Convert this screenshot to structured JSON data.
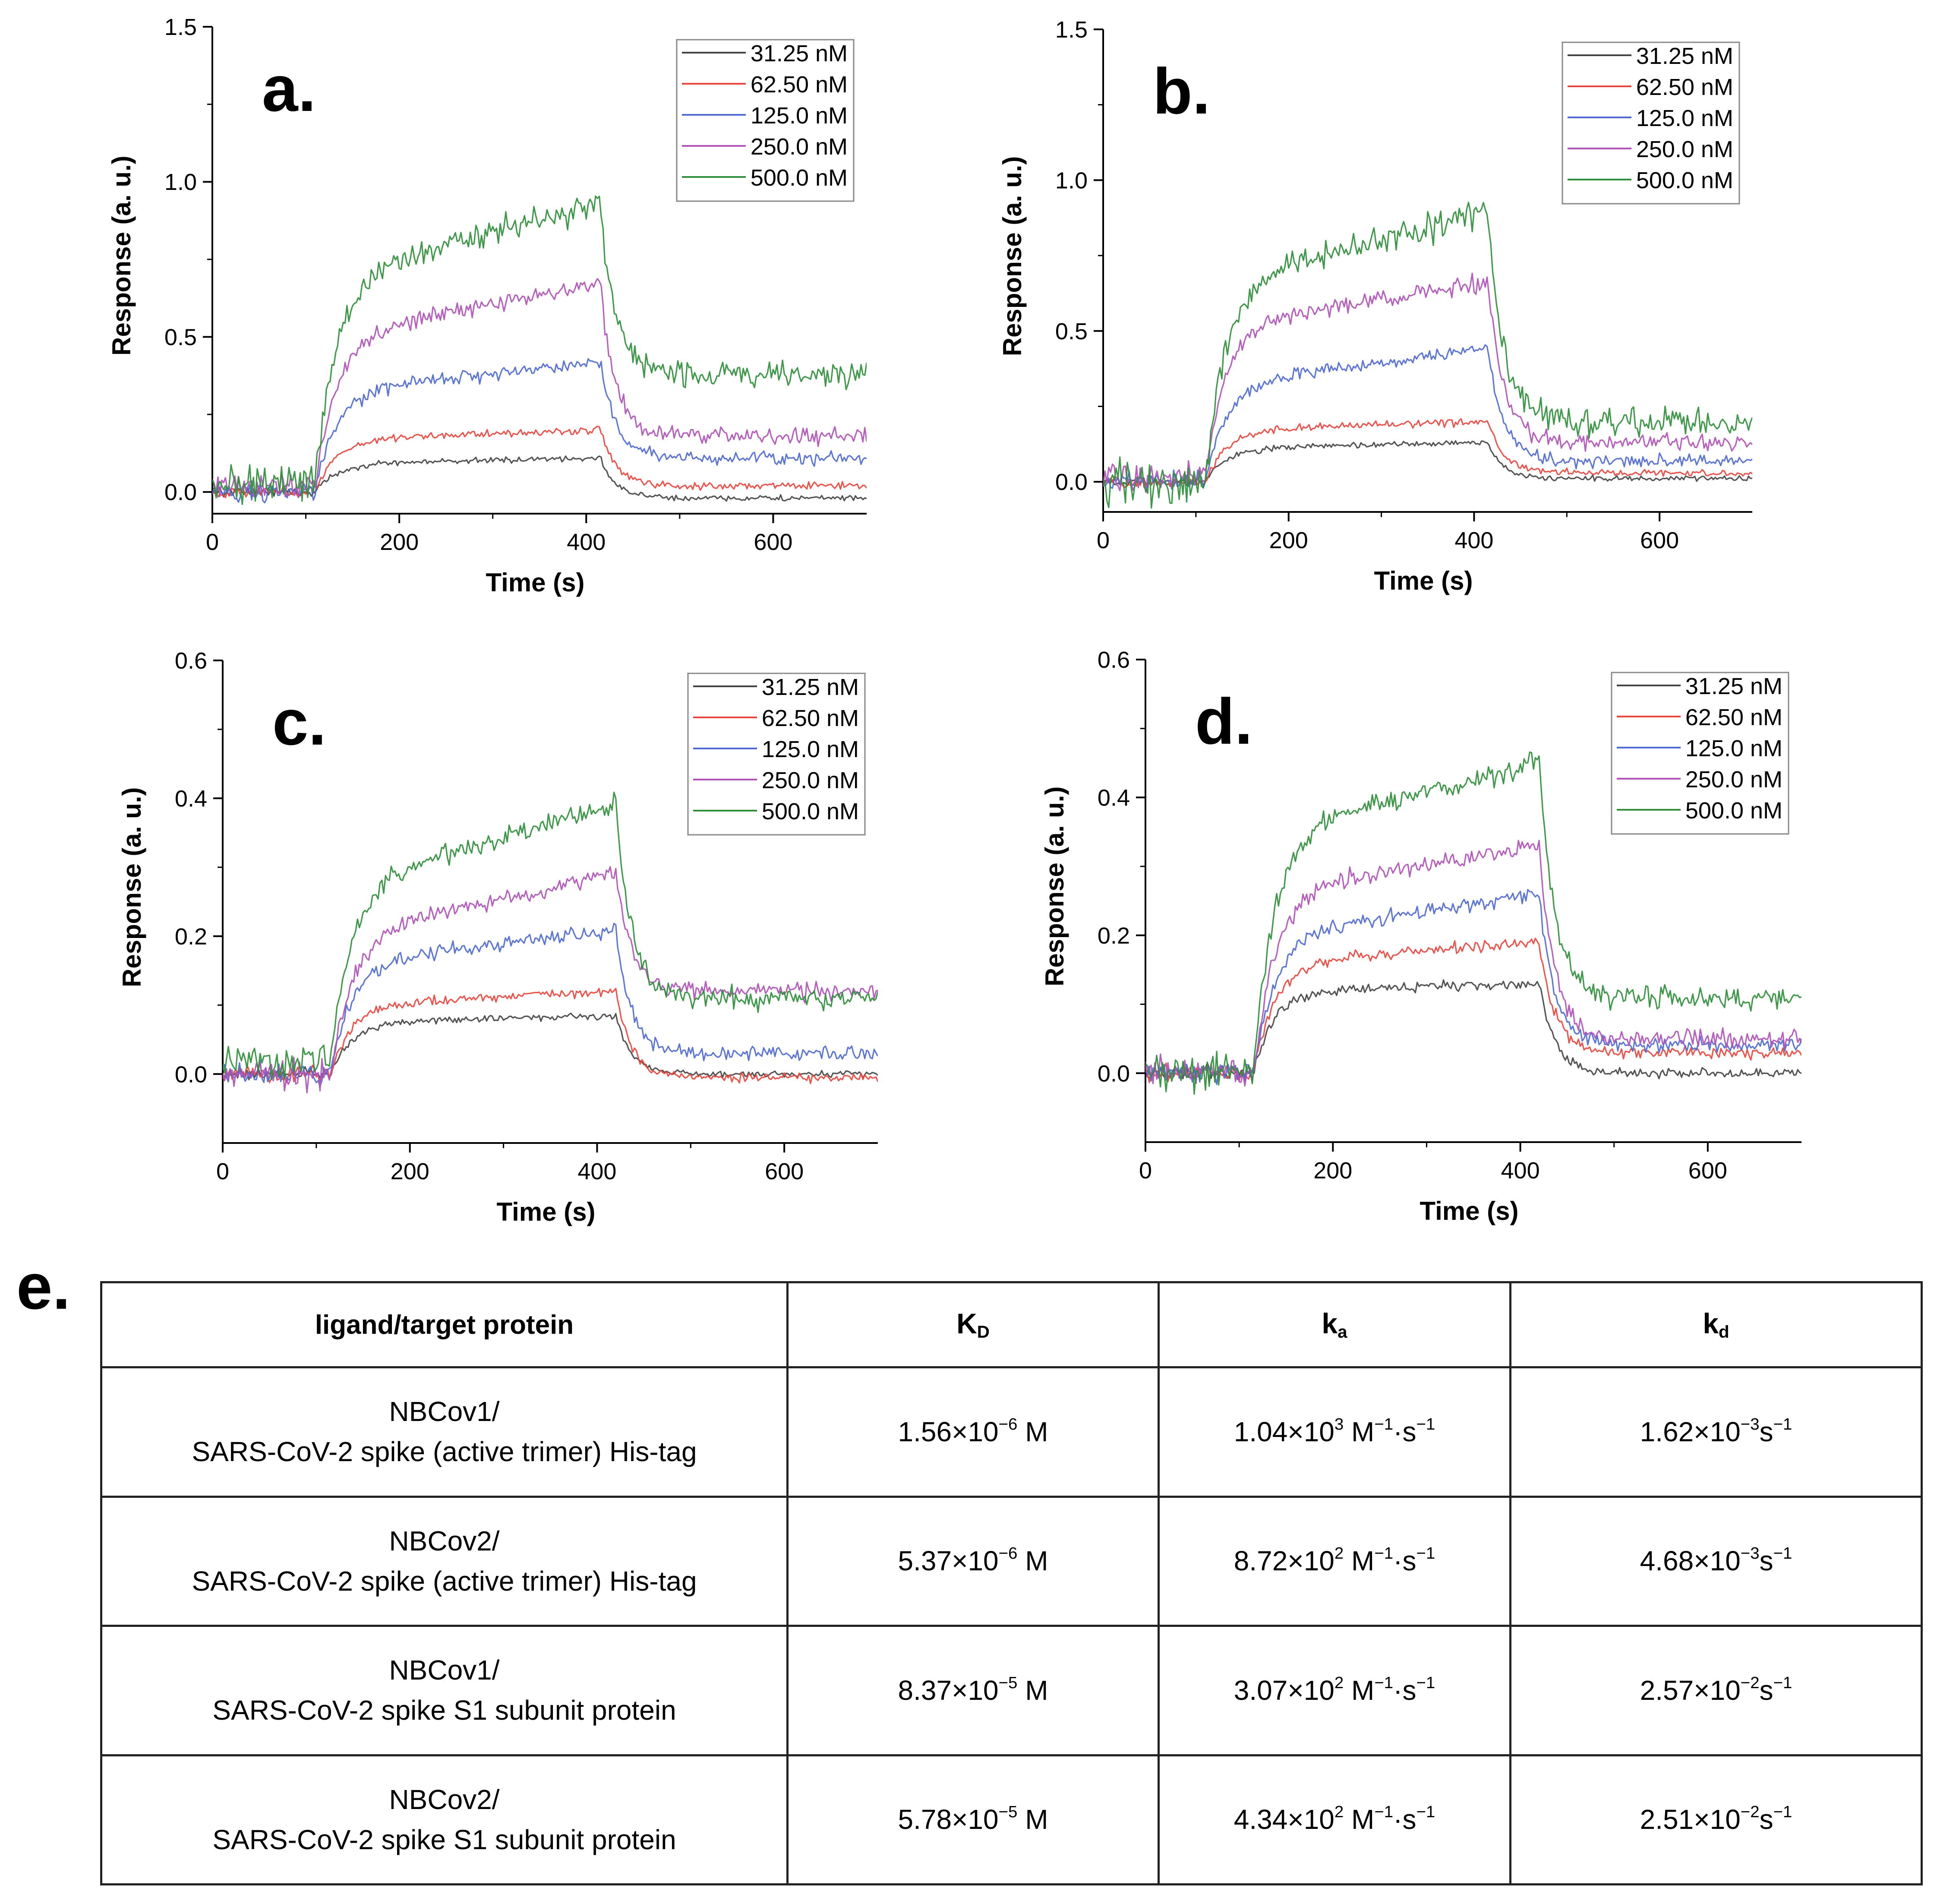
{
  "chart_data": [
    {
      "panel": "a.",
      "type": "line",
      "xlabel": "Time (s)",
      "ylabel": "Response (a. u.)",
      "xlim": [
        0,
        700
      ],
      "ylim": [
        -0.07,
        1.5
      ],
      "xticks": [
        0,
        200,
        400,
        600
      ],
      "yticks": [
        "0.0",
        "0.5",
        "1.0",
        "1.5"
      ],
      "legend_position": "top-right",
      "association_start": 110,
      "dissociation_start": 415,
      "series": [
        {
          "name": "31.25 nM",
          "color": "#444444",
          "baseline": 0.0,
          "plateau_start": 0.09,
          "plateau_end": 0.11,
          "final": -0.02,
          "noise": 0.008
        },
        {
          "name": "62.50 nM",
          "color": "#e8473f",
          "baseline": 0.0,
          "plateau_start": 0.17,
          "plateau_end": 0.2,
          "final": 0.02,
          "noise": 0.01
        },
        {
          "name": "125.0 nM",
          "color": "#4f6ad0",
          "baseline": 0.0,
          "plateau_start": 0.32,
          "plateau_end": 0.42,
          "final": 0.11,
          "noise": 0.018
        },
        {
          "name": "250.0 nM",
          "color": "#b052b8",
          "baseline": 0.02,
          "plateau_start": 0.5,
          "plateau_end": 0.67,
          "final": 0.18,
          "noise": 0.025
        },
        {
          "name": "500.0 nM",
          "color": "#2f8f3a",
          "baseline": 0.03,
          "plateau_start": 0.68,
          "plateau_end": 0.93,
          "final": 0.38,
          "noise": 0.035
        }
      ]
    },
    {
      "panel": "b.",
      "type": "line",
      "xlabel": "Time (s)",
      "ylabel": "Response (a. u.)",
      "xlim": [
        0,
        700
      ],
      "ylim": [
        -0.1,
        1.5
      ],
      "xticks": [
        0,
        200,
        400,
        600
      ],
      "yticks": [
        "0.0",
        "0.5",
        "1.0",
        "1.5"
      ],
      "legend_position": "top-right",
      "association_start": 110,
      "dissociation_start": 415,
      "series": [
        {
          "name": "31.25 nM",
          "color": "#444444",
          "baseline": 0.0,
          "plateau_start": 0.11,
          "plateau_end": 0.13,
          "final": 0.01,
          "noise": 0.008
        },
        {
          "name": "62.50 nM",
          "color": "#e8473f",
          "baseline": 0.0,
          "plateau_start": 0.17,
          "plateau_end": 0.2,
          "final": 0.03,
          "noise": 0.01
        },
        {
          "name": "125.0 nM",
          "color": "#4f6ad0",
          "baseline": 0.0,
          "plateau_start": 0.32,
          "plateau_end": 0.44,
          "final": 0.07,
          "noise": 0.018
        },
        {
          "name": "250.0 nM",
          "color": "#b052b8",
          "baseline": 0.02,
          "plateau_start": 0.52,
          "plateau_end": 0.66,
          "final": 0.13,
          "noise": 0.025
        },
        {
          "name": "500.0 nM",
          "color": "#2f8f3a",
          "baseline": 0.0,
          "plateau_start": 0.66,
          "plateau_end": 0.89,
          "final": 0.2,
          "noise": 0.04
        }
      ]
    },
    {
      "panel": "c.",
      "type": "line",
      "xlabel": "Time (s)",
      "ylabel": "Response (a. u.)",
      "xlim": [
        0,
        700
      ],
      "ylim": [
        -0.1,
        0.6
      ],
      "xticks": [
        0,
        200,
        400,
        600
      ],
      "yticks": [
        "0.0",
        "0.2",
        "0.4",
        "0.6"
      ],
      "legend_position": "top-right",
      "association_start": 115,
      "dissociation_start": 420,
      "series": [
        {
          "name": "31.25 nM",
          "color": "#444444",
          "baseline": 0.0,
          "plateau_start": 0.075,
          "plateau_end": 0.085,
          "final": 0.0,
          "noise": 0.004
        },
        {
          "name": "62.50 nM",
          "color": "#e8473f",
          "baseline": 0.0,
          "plateau_start": 0.1,
          "plateau_end": 0.12,
          "final": -0.005,
          "noise": 0.006
        },
        {
          "name": "125.0 nM",
          "color": "#4f6ad0",
          "baseline": 0.0,
          "plateau_start": 0.16,
          "plateau_end": 0.21,
          "final": 0.03,
          "noise": 0.009
        },
        {
          "name": "250.0 nM",
          "color": "#b052b8",
          "baseline": 0.0,
          "plateau_start": 0.2,
          "plateau_end": 0.29,
          "final": 0.12,
          "noise": 0.011
        },
        {
          "name": "500.0 nM",
          "color": "#2f8f3a",
          "baseline": 0.02,
          "plateau_start": 0.27,
          "plateau_end": 0.39,
          "final": 0.11,
          "noise": 0.013
        }
      ]
    },
    {
      "panel": "d.",
      "type": "line",
      "xlabel": "Time (s)",
      "ylabel": "Response (a. u.)",
      "xlim": [
        0,
        700
      ],
      "ylim": [
        -0.1,
        0.6
      ],
      "xticks": [
        0,
        200,
        400,
        600
      ],
      "yticks": [
        "0.0",
        "0.2",
        "0.4",
        "0.6"
      ],
      "legend_position": "top-right",
      "association_start": 115,
      "dissociation_start": 420,
      "series": [
        {
          "name": "31.25 nM",
          "color": "#444444",
          "baseline": 0.0,
          "plateau_start": 0.12,
          "plateau_end": 0.13,
          "final": 0.0,
          "noise": 0.006
        },
        {
          "name": "62.50 nM",
          "color": "#e8473f",
          "baseline": 0.0,
          "plateau_start": 0.16,
          "plateau_end": 0.19,
          "final": 0.03,
          "noise": 0.007
        },
        {
          "name": "125.0 nM",
          "color": "#4f6ad0",
          "baseline": 0.0,
          "plateau_start": 0.2,
          "plateau_end": 0.26,
          "final": 0.04,
          "noise": 0.009
        },
        {
          "name": "250.0 nM",
          "color": "#b052b8",
          "baseline": 0.0,
          "plateau_start": 0.26,
          "plateau_end": 0.33,
          "final": 0.05,
          "noise": 0.011
        },
        {
          "name": "500.0 nM",
          "color": "#2f8f3a",
          "baseline": 0.0,
          "plateau_start": 0.35,
          "plateau_end": 0.45,
          "final": 0.11,
          "noise": 0.014
        }
      ]
    }
  ],
  "table": {
    "label": "e.",
    "headers": {
      "col1": "ligand/target protein",
      "kd_sym": "K",
      "kd_sub": "D",
      "ka_sym": "k",
      "ka_sub": "a",
      "koff_sym": "k",
      "koff_sub": "d"
    },
    "rows": [
      {
        "ligand": "NBCov1/",
        "target": "SARS-CoV-2 spike (active trimer) His-tag",
        "KD_mant": "1.56×10",
        "KD_exp": "−6",
        "KD_unit": " M",
        "ka_mant": "1.04×10",
        "ka_exp": "3",
        "ka_unit": " M",
        "ka_unit_exp1": "−1",
        "ka_unit_s": "·s",
        "ka_unit_exp2": "−1",
        "kd_mant": "1.62×10",
        "kd_exp": "−3",
        "kd_unit": "s",
        "kd_unit_exp": "−1"
      },
      {
        "ligand": "NBCov2/",
        "target": "SARS-CoV-2 spike (active trimer) His-tag",
        "KD_mant": "5.37×10",
        "KD_exp": "−6",
        "KD_unit": " M",
        "ka_mant": "8.72×10",
        "ka_exp": "2",
        "ka_unit": " M",
        "ka_unit_exp1": "−1",
        "ka_unit_s": "·s",
        "ka_unit_exp2": "−1",
        "kd_mant": "4.68×10",
        "kd_exp": "−3",
        "kd_unit": "s",
        "kd_unit_exp": "−1"
      },
      {
        "ligand": "NBCov1/",
        "target": "SARS-CoV-2 spike S1 subunit protein",
        "KD_mant": "8.37×10",
        "KD_exp": "−5",
        "KD_unit": " M",
        "ka_mant": "3.07×10",
        "ka_exp": "2",
        "ka_unit": " M",
        "ka_unit_exp1": "−1",
        "ka_unit_s": "·s",
        "ka_unit_exp2": "−1",
        "kd_mant": "2.57×10",
        "kd_exp": "−2",
        "kd_unit": "s",
        "kd_unit_exp": "−1"
      },
      {
        "ligand": "NBCov2/",
        "target": "SARS-CoV-2 spike S1 subunit protein",
        "KD_mant": "5.78×10",
        "KD_exp": "−5",
        "KD_unit": " M",
        "ka_mant": "4.34×10",
        "ka_exp": "2",
        "ka_unit": " M",
        "ka_unit_exp1": "−1",
        "ka_unit_s": "·s",
        "ka_unit_exp2": "−1",
        "kd_mant": "2.51×10",
        "kd_exp": "−2",
        "kd_unit": "s",
        "kd_unit_exp": "−1"
      }
    ]
  }
}
